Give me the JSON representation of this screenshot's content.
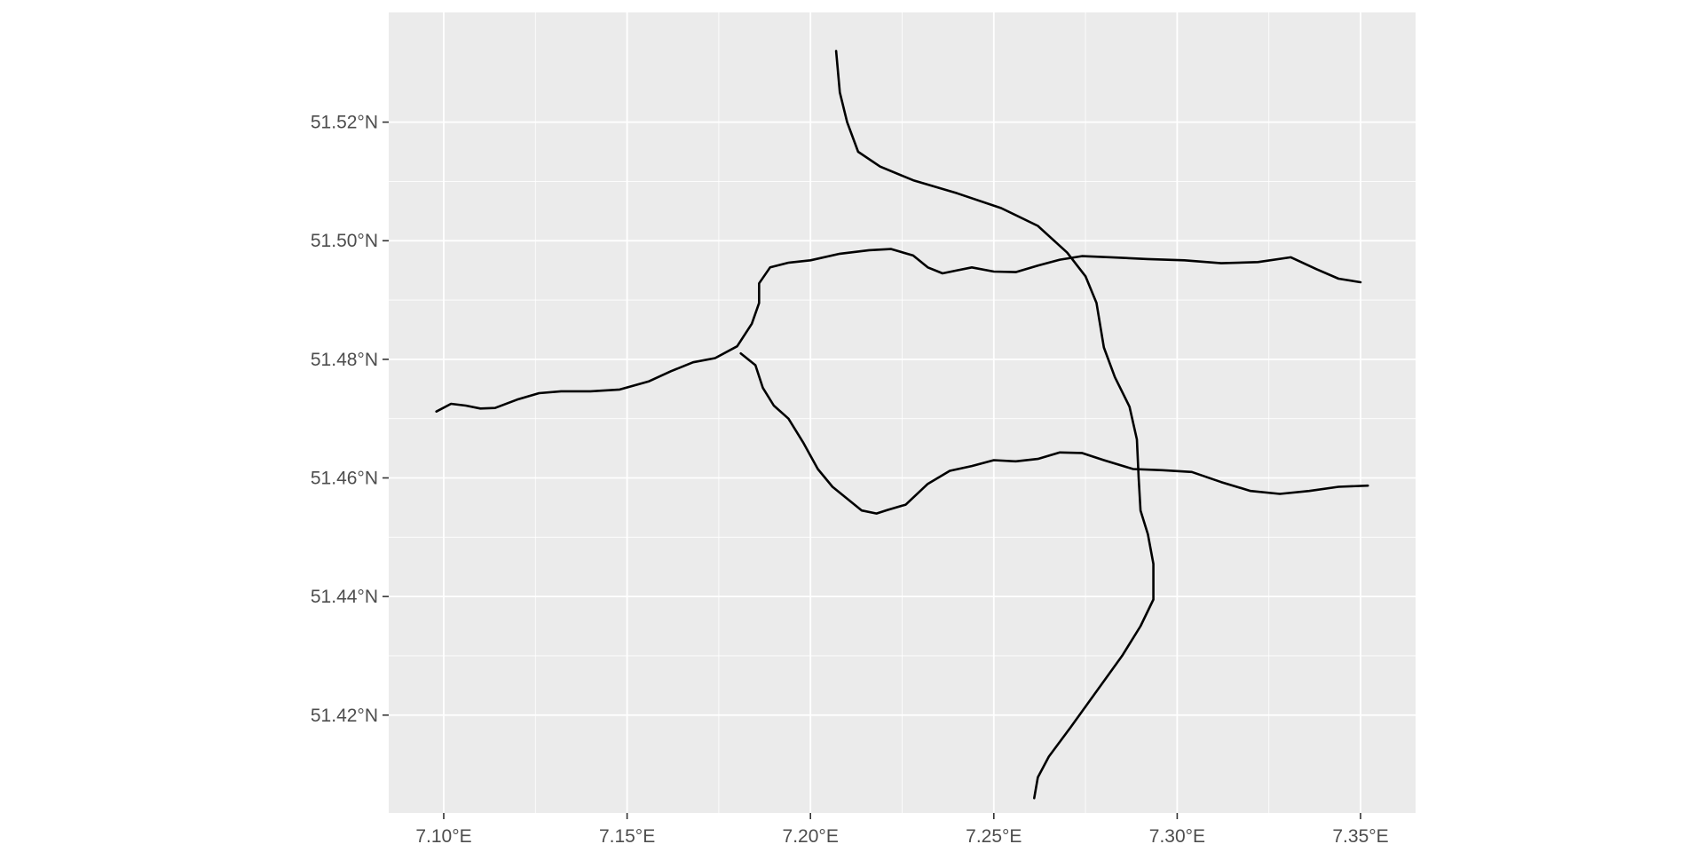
{
  "chart_data": {
    "type": "line",
    "title": "",
    "xlabel": "",
    "ylabel": "",
    "xlim": [
      7.085,
      7.365
    ],
    "ylim": [
      51.4035,
      51.5385
    ],
    "grid": true,
    "panel_background": "#ebebeb",
    "grid_color": "#ffffff",
    "line_color": "#000000",
    "x_ticks": [
      {
        "value": 7.1,
        "label": "7.10°E"
      },
      {
        "value": 7.15,
        "label": "7.15°E"
      },
      {
        "value": 7.2,
        "label": "7.20°E"
      },
      {
        "value": 7.25,
        "label": "7.25°E"
      },
      {
        "value": 7.3,
        "label": "7.30°E"
      },
      {
        "value": 7.35,
        "label": "7.35°E"
      }
    ],
    "y_ticks": [
      {
        "value": 51.42,
        "label": "51.42°N"
      },
      {
        "value": 51.44,
        "label": "51.44°N"
      },
      {
        "value": 51.46,
        "label": "51.46°N"
      },
      {
        "value": 51.48,
        "label": "51.48°N"
      },
      {
        "value": 51.5,
        "label": "51.50°N"
      },
      {
        "value": 51.52,
        "label": "51.52°N"
      }
    ],
    "series": [
      {
        "points": [
          [
            7.098,
            51.4712
          ],
          [
            7.102,
            51.4725
          ],
          [
            7.106,
            51.4722
          ],
          [
            7.11,
            51.4717
          ],
          [
            7.114,
            51.4718
          ],
          [
            7.12,
            51.4732
          ],
          [
            7.126,
            51.4743
          ],
          [
            7.132,
            51.4746
          ],
          [
            7.14,
            51.4746
          ],
          [
            7.148,
            51.4749
          ],
          [
            7.156,
            51.4763
          ],
          [
            7.162,
            51.478
          ],
          [
            7.168,
            51.4795
          ],
          [
            7.174,
            51.4802
          ],
          [
            7.18,
            51.4822
          ],
          [
            7.184,
            51.486
          ],
          [
            7.186,
            51.4895
          ],
          [
            7.186,
            51.4928
          ],
          [
            7.189,
            51.4955
          ],
          [
            7.194,
            51.4963
          ],
          [
            7.2,
            51.4967
          ],
          [
            7.208,
            51.4978
          ],
          [
            7.216,
            51.4984
          ],
          [
            7.222,
            51.4986
          ],
          [
            7.228,
            51.4975
          ],
          [
            7.232,
            51.4955
          ],
          [
            7.236,
            51.4945
          ],
          [
            7.24,
            51.495
          ],
          [
            7.244,
            51.4955
          ],
          [
            7.25,
            51.4948
          ],
          [
            7.256,
            51.4947
          ],
          [
            7.262,
            51.4958
          ],
          [
            7.268,
            51.4968
          ],
          [
            7.274,
            51.4974
          ],
          [
            7.282,
            51.4972
          ],
          [
            7.292,
            51.4969
          ],
          [
            7.302,
            51.4967
          ],
          [
            7.312,
            51.4962
          ],
          [
            7.322,
            51.4964
          ],
          [
            7.331,
            51.4972
          ],
          [
            7.338,
            51.4952
          ],
          [
            7.344,
            51.4936
          ],
          [
            7.35,
            51.493
          ]
        ]
      },
      {
        "points": [
          [
            7.181,
            51.481
          ],
          [
            7.185,
            51.479
          ],
          [
            7.187,
            51.4752
          ],
          [
            7.19,
            51.4722
          ],
          [
            7.194,
            51.47
          ],
          [
            7.198,
            51.466
          ],
          [
            7.202,
            51.4615
          ],
          [
            7.206,
            51.4585
          ],
          [
            7.21,
            51.4565
          ],
          [
            7.214,
            51.4545
          ],
          [
            7.218,
            51.454
          ],
          [
            7.221,
            51.4546
          ],
          [
            7.226,
            51.4555
          ],
          [
            7.232,
            51.459
          ],
          [
            7.238,
            51.4612
          ],
          [
            7.244,
            51.462
          ],
          [
            7.25,
            51.463
          ],
          [
            7.256,
            51.4628
          ],
          [
            7.262,
            51.4632
          ],
          [
            7.268,
            51.4643
          ],
          [
            7.274,
            51.4642
          ],
          [
            7.28,
            51.463
          ],
          [
            7.288,
            51.4615
          ],
          [
            7.296,
            51.4613
          ],
          [
            7.304,
            51.461
          ],
          [
            7.312,
            51.4593
          ],
          [
            7.32,
            51.4578
          ],
          [
            7.328,
            51.4573
          ],
          [
            7.336,
            51.4578
          ],
          [
            7.344,
            51.4585
          ],
          [
            7.352,
            51.4587
          ]
        ]
      },
      {
        "points": [
          [
            7.207,
            51.532
          ],
          [
            7.208,
            51.525
          ],
          [
            7.21,
            51.52
          ],
          [
            7.213,
            51.515
          ],
          [
            7.219,
            51.5125
          ],
          [
            7.228,
            51.5102
          ],
          [
            7.24,
            51.508
          ],
          [
            7.252,
            51.5055
          ],
          [
            7.262,
            51.5025
          ],
          [
            7.27,
            51.498
          ],
          [
            7.275,
            51.494
          ],
          [
            7.278,
            51.4895
          ],
          [
            7.28,
            51.482
          ],
          [
            7.283,
            51.477
          ],
          [
            7.287,
            51.472
          ],
          [
            7.289,
            51.4665
          ],
          [
            7.2895,
            51.46
          ],
          [
            7.29,
            51.4545
          ],
          [
            7.292,
            51.4505
          ],
          [
            7.2935,
            51.4455
          ],
          [
            7.2935,
            51.4395
          ],
          [
            7.29,
            51.435
          ],
          [
            7.285,
            51.43
          ],
          [
            7.278,
            51.424
          ],
          [
            7.271,
            51.418
          ],
          [
            7.265,
            51.413
          ],
          [
            7.262,
            51.4095
          ],
          [
            7.261,
            51.406
          ]
        ]
      }
    ]
  }
}
